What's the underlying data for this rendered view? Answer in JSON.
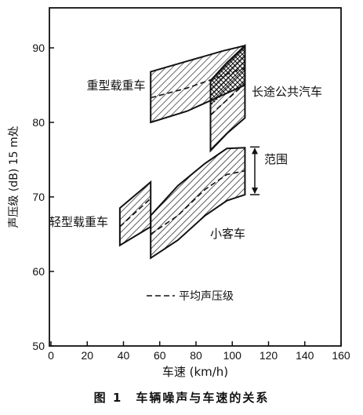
{
  "caption": "图 1　车辆噪声与车速的关系",
  "chart_data": {
    "type": "area",
    "xlabel": "车速 (km/h)",
    "ylabel": "声压级 (dB) 15 m处",
    "xlim": [
      0,
      160
    ],
    "ylim": [
      50,
      92
    ],
    "xticks": [
      0,
      20,
      40,
      60,
      80,
      100,
      120,
      140,
      160
    ],
    "yticks": [
      50,
      60,
      70,
      80,
      90
    ],
    "grid": false,
    "legend": {
      "position": "bottom-center",
      "entries": [
        {
          "style": "dashed",
          "label": "平均声压级"
        }
      ]
    },
    "annotations": [
      {
        "label": "范围",
        "type": "range-bracket",
        "y_range": [
          70.3,
          76.7
        ]
      }
    ],
    "series": [
      {
        "name": "重型载重车",
        "upper": [
          [
            55,
            86.8
          ],
          [
            75,
            88.2
          ],
          [
            95,
            89.6
          ],
          [
            107,
            90.3
          ]
        ],
        "lower": [
          [
            55,
            80.0
          ],
          [
            75,
            81.5
          ],
          [
            95,
            83.7
          ],
          [
            107,
            85.0
          ]
        ],
        "mean": [
          [
            55,
            83.3
          ],
          [
            75,
            84.6
          ],
          [
            95,
            86.3
          ],
          [
            107,
            87.3
          ]
        ]
      },
      {
        "name": "长途公共汽车",
        "upper": [
          [
            88,
            85.6
          ],
          [
            97,
            88.0
          ],
          [
            107,
            90.3
          ]
        ],
        "lower": [
          [
            88,
            76.2
          ],
          [
            97,
            78.5
          ],
          [
            107,
            80.6
          ]
        ],
        "mean": [
          [
            88,
            81.0
          ],
          [
            97,
            83.0
          ],
          [
            107,
            85.2
          ]
        ]
      },
      {
        "name": "轻型载重车",
        "upper": [
          [
            38,
            68.5
          ],
          [
            55,
            72.0
          ]
        ],
        "lower": [
          [
            38,
            63.5
          ],
          [
            55,
            66.0
          ]
        ],
        "mean": [
          [
            38,
            66.0
          ],
          [
            55,
            69.8
          ]
        ]
      },
      {
        "name": "小客车",
        "upper": [
          [
            55,
            67.5
          ],
          [
            70,
            71.5
          ],
          [
            85,
            74.5
          ],
          [
            97,
            76.5
          ],
          [
            107,
            76.6
          ]
        ],
        "lower": [
          [
            55,
            61.8
          ],
          [
            70,
            64.2
          ],
          [
            85,
            67.5
          ],
          [
            97,
            69.5
          ],
          [
            107,
            70.3
          ]
        ],
        "mean": [
          [
            55,
            65.0
          ],
          [
            70,
            67.5
          ],
          [
            85,
            71.0
          ],
          [
            97,
            73.0
          ],
          [
            107,
            73.5
          ]
        ]
      }
    ]
  }
}
